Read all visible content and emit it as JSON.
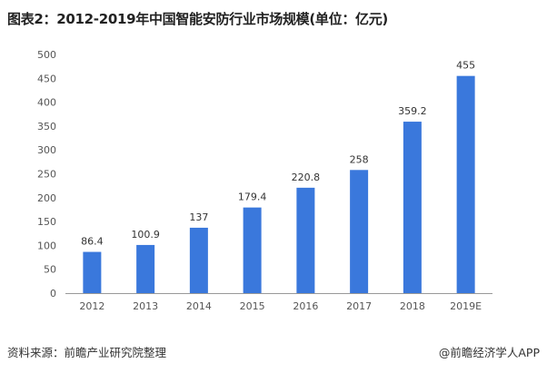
{
  "title": "图表2：2012-2019年中国智能安防行业市场规模(单位：亿元)",
  "source_label": "资料来源：前瞻产业研究院整理",
  "credit_label": "@前瞻经济学人APP",
  "colors": {
    "bar": "#3A78DC",
    "axis": "#999999",
    "text": "#555555"
  },
  "chart_data": {
    "type": "bar",
    "title": "图表2：2012-2019年中国智能安防行业市场规模(单位：亿元)",
    "xlabel": "",
    "ylabel": "",
    "categories": [
      "2012",
      "2013",
      "2014",
      "2015",
      "2016",
      "2017",
      "2018",
      "2019E"
    ],
    "values": [
      86.4,
      100.9,
      137,
      179.4,
      220.8,
      258,
      359.2,
      455
    ],
    "data_labels": [
      "86.4",
      "100.9",
      "137",
      "179.4",
      "220.8",
      "258",
      "359.2",
      "455"
    ],
    "ylim": [
      0,
      500
    ],
    "yticks": [
      "0",
      "50",
      "100",
      "150",
      "200",
      "250",
      "300",
      "350",
      "400",
      "450",
      "500"
    ],
    "grid": false,
    "legend": "none"
  }
}
